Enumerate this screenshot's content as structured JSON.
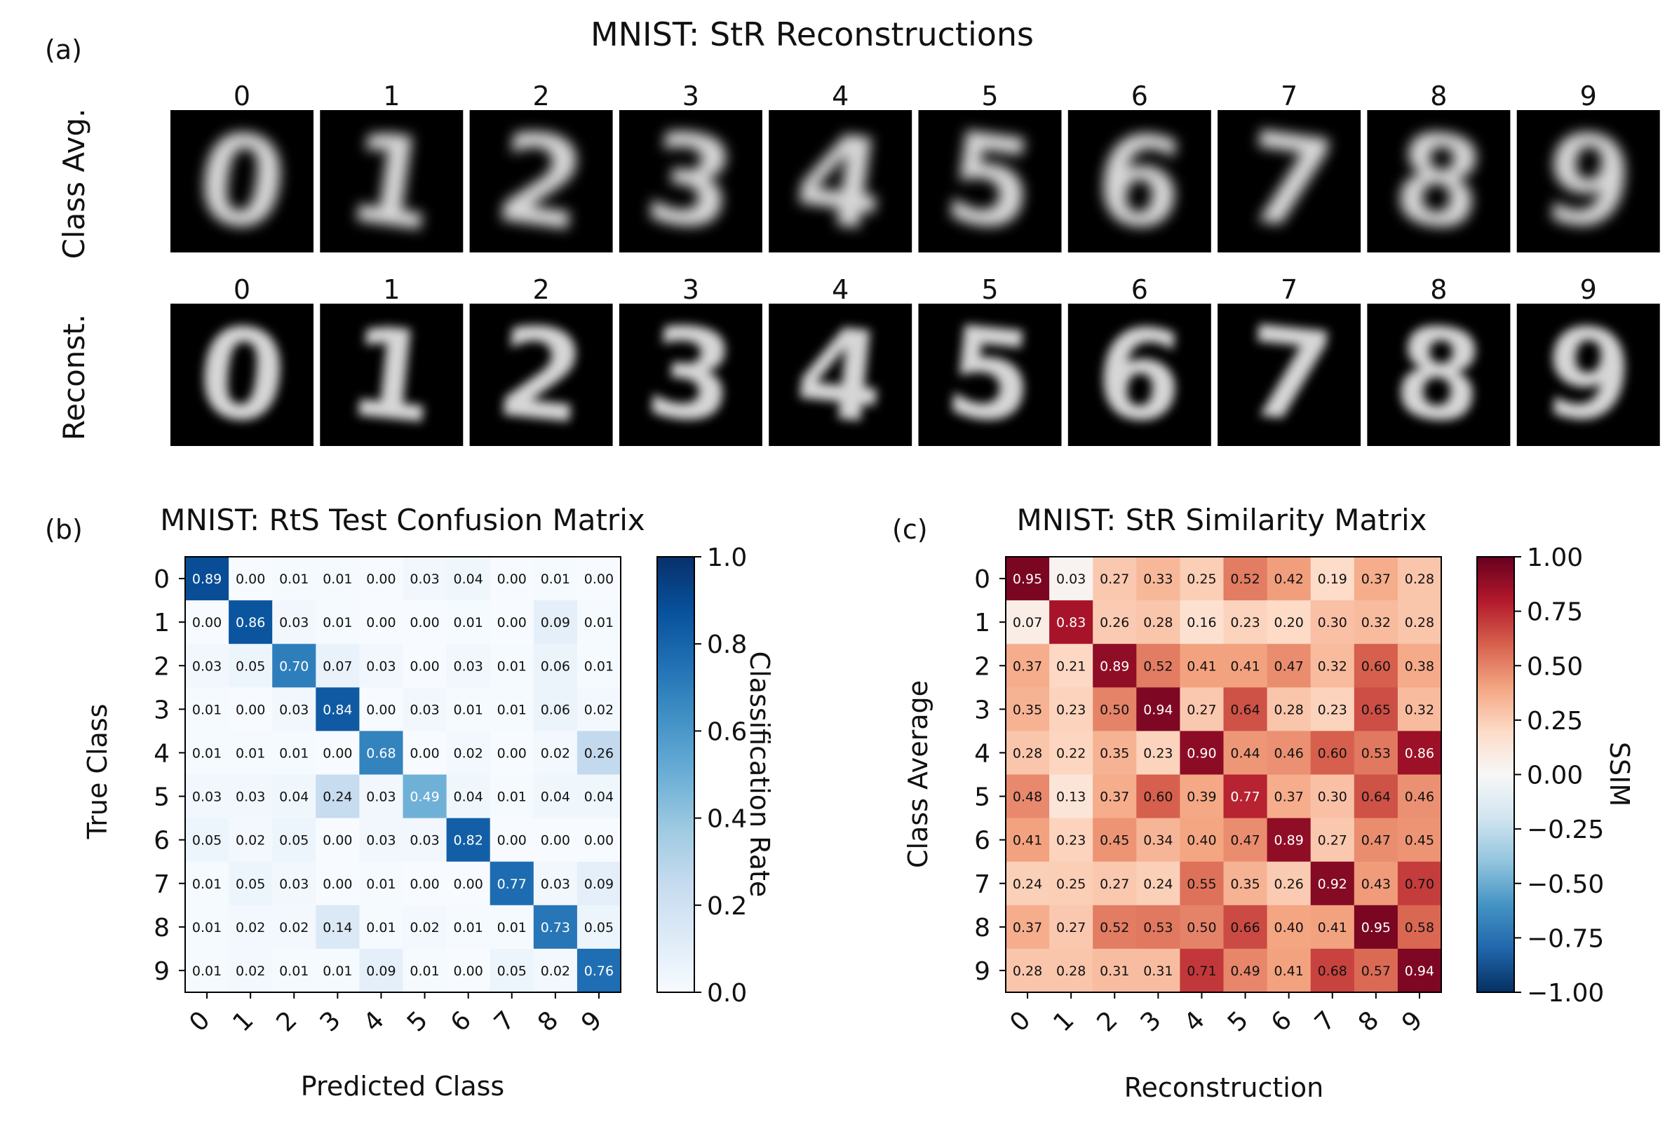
{
  "panel_a": {
    "label": "(a)",
    "title": "MNIST: StR Reconstructions",
    "rows": [
      {
        "label": "Class Avg.",
        "digits": [
          "0",
          "1",
          "2",
          "3",
          "4",
          "5",
          "6",
          "7",
          "8",
          "9"
        ],
        "style": "avg"
      },
      {
        "label": "Reconst.",
        "digits": [
          "0",
          "1",
          "2",
          "3",
          "4",
          "5",
          "6",
          "7",
          "8",
          "9"
        ],
        "style": "recon"
      }
    ]
  },
  "chart_data": [
    {
      "type": "heatmap",
      "panel_label": "(b)",
      "title": "MNIST: RtS Test Confusion Matrix",
      "xlabel": "Predicted Class",
      "ylabel": "True Class",
      "x_categories": [
        "0",
        "1",
        "2",
        "3",
        "4",
        "5",
        "6",
        "7",
        "8",
        "9"
      ],
      "y_categories": [
        "0",
        "1",
        "2",
        "3",
        "4",
        "5",
        "6",
        "7",
        "8",
        "9"
      ],
      "values": [
        [
          0.89,
          0.0,
          0.01,
          0.01,
          0.0,
          0.03,
          0.04,
          0.0,
          0.01,
          0.0
        ],
        [
          0.0,
          0.86,
          0.03,
          0.01,
          0.0,
          0.0,
          0.01,
          0.0,
          0.09,
          0.01
        ],
        [
          0.03,
          0.05,
          0.7,
          0.07,
          0.03,
          0.0,
          0.03,
          0.01,
          0.06,
          0.01
        ],
        [
          0.01,
          0.0,
          0.03,
          0.84,
          0.0,
          0.03,
          0.01,
          0.01,
          0.06,
          0.02
        ],
        [
          0.01,
          0.01,
          0.01,
          0.0,
          0.68,
          0.0,
          0.02,
          0.0,
          0.02,
          0.26
        ],
        [
          0.03,
          0.03,
          0.04,
          0.24,
          0.03,
          0.49,
          0.04,
          0.01,
          0.04,
          0.04
        ],
        [
          0.05,
          0.02,
          0.05,
          0.0,
          0.03,
          0.03,
          0.82,
          0.0,
          0.0,
          0.0
        ],
        [
          0.01,
          0.05,
          0.03,
          0.0,
          0.01,
          0.0,
          0.0,
          0.77,
          0.03,
          0.09
        ],
        [
          0.01,
          0.02,
          0.02,
          0.14,
          0.01,
          0.02,
          0.01,
          0.01,
          0.73,
          0.05
        ],
        [
          0.01,
          0.02,
          0.01,
          0.01,
          0.09,
          0.01,
          0.0,
          0.05,
          0.02,
          0.76
        ]
      ],
      "colormap": "Blues",
      "colorbar": {
        "label": "Classification Rate",
        "range": [
          0.0,
          1.0
        ],
        "ticks": [
          "0.0",
          "0.2",
          "0.4",
          "0.6",
          "0.8",
          "1.0"
        ]
      }
    },
    {
      "type": "heatmap",
      "panel_label": "(c)",
      "title": "MNIST: StR Similarity Matrix",
      "xlabel": "Reconstruction",
      "ylabel": "Class Average",
      "x_categories": [
        "0",
        "1",
        "2",
        "3",
        "4",
        "5",
        "6",
        "7",
        "8",
        "9"
      ],
      "y_categories": [
        "0",
        "1",
        "2",
        "3",
        "4",
        "5",
        "6",
        "7",
        "8",
        "9"
      ],
      "values": [
        [
          0.95,
          0.03,
          0.27,
          0.33,
          0.25,
          0.52,
          0.42,
          0.19,
          0.37,
          0.28
        ],
        [
          0.07,
          0.83,
          0.26,
          0.28,
          0.16,
          0.23,
          0.2,
          0.3,
          0.32,
          0.28
        ],
        [
          0.37,
          0.21,
          0.89,
          0.52,
          0.41,
          0.41,
          0.47,
          0.32,
          0.6,
          0.38
        ],
        [
          0.35,
          0.23,
          0.5,
          0.94,
          0.27,
          0.64,
          0.28,
          0.23,
          0.65,
          0.32
        ],
        [
          0.28,
          0.22,
          0.35,
          0.23,
          0.9,
          0.44,
          0.46,
          0.6,
          0.53,
          0.86
        ],
        [
          0.48,
          0.13,
          0.37,
          0.6,
          0.39,
          0.77,
          0.37,
          0.3,
          0.64,
          0.46
        ],
        [
          0.41,
          0.23,
          0.45,
          0.34,
          0.4,
          0.47,
          0.89,
          0.27,
          0.47,
          0.45
        ],
        [
          0.24,
          0.25,
          0.27,
          0.24,
          0.55,
          0.35,
          0.26,
          0.92,
          0.43,
          0.7
        ],
        [
          0.37,
          0.27,
          0.52,
          0.53,
          0.5,
          0.66,
          0.4,
          0.41,
          0.95,
          0.58
        ],
        [
          0.28,
          0.28,
          0.31,
          0.31,
          0.71,
          0.49,
          0.41,
          0.68,
          0.57,
          0.94
        ]
      ],
      "colormap": "RdBu_r",
      "colorbar": {
        "label": "SSIM",
        "range": [
          -1.0,
          1.0
        ],
        "ticks": [
          "−1.00",
          "−0.75",
          "−0.50",
          "−0.25",
          "0.00",
          "0.25",
          "0.50",
          "0.75",
          "1.00"
        ]
      }
    }
  ]
}
